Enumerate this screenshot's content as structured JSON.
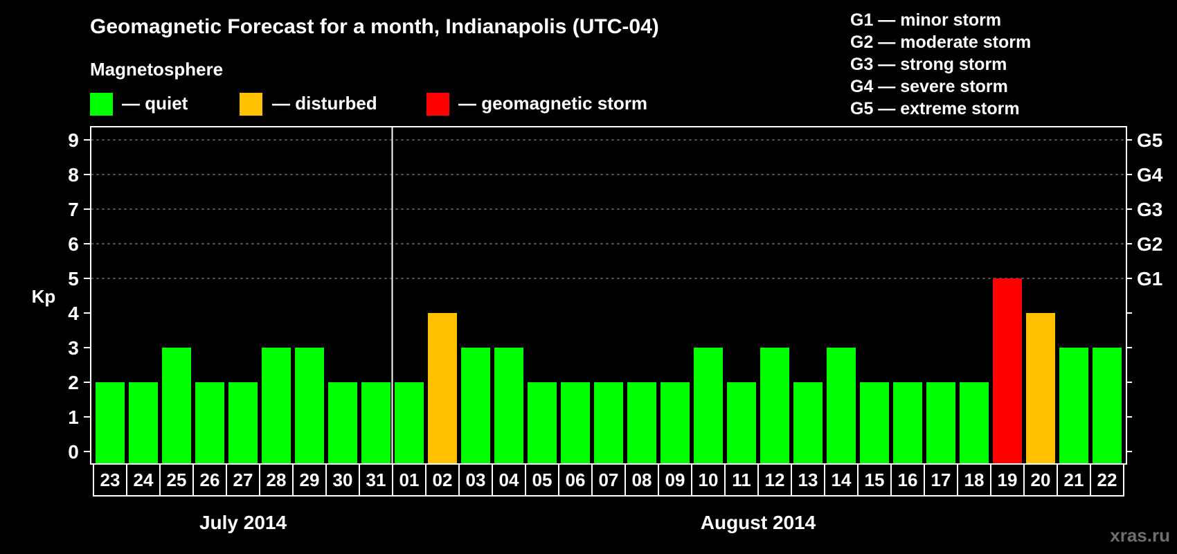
{
  "colors": {
    "background": "#000000",
    "quiet": "#00ff00",
    "disturbed": "#ffc000",
    "storm": "#ff0000",
    "grid": "#7a7a7a",
    "watermark": "#6e6e6e"
  },
  "legend": {
    "heading": "Magnetosphere",
    "items": [
      {
        "label": "— quiet",
        "color_key": "quiet"
      },
      {
        "label": "— disturbed",
        "color_key": "disturbed"
      },
      {
        "label": "— geomagnetic storm",
        "color_key": "storm"
      }
    ]
  },
  "g_scale_legend": [
    "G1 — minor storm",
    "G2 — moderate storm",
    "G3 — strong storm",
    "G4 — severe storm",
    "G5 — extreme storm"
  ],
  "watermark": "xras.ru",
  "chart_data": {
    "type": "bar",
    "title": "Geomagnetic Forecast for a month, Indianapolis (UTC-04)",
    "ylabel": "Kp",
    "xlabel": "",
    "ylim": [
      0,
      9
    ],
    "yticks": [
      0,
      1,
      2,
      3,
      4,
      5,
      6,
      7,
      8,
      9
    ],
    "right_axis_labels": [
      {
        "value": 5,
        "label": "G1"
      },
      {
        "value": 6,
        "label": "G2"
      },
      {
        "value": 7,
        "label": "G3"
      },
      {
        "value": 8,
        "label": "G4"
      },
      {
        "value": 9,
        "label": "G5"
      }
    ],
    "grid": "horizontal dashed at 5–9",
    "categories": [
      "23",
      "24",
      "25",
      "26",
      "27",
      "28",
      "29",
      "30",
      "31",
      "01",
      "02",
      "03",
      "04",
      "05",
      "06",
      "07",
      "08",
      "09",
      "10",
      "11",
      "12",
      "13",
      "14",
      "15",
      "16",
      "17",
      "18",
      "19",
      "20",
      "21",
      "22"
    ],
    "values": [
      2,
      2,
      3,
      2,
      2,
      3,
      3,
      2,
      2,
      2,
      4,
      3,
      3,
      2,
      2,
      2,
      2,
      2,
      3,
      2,
      3,
      2,
      3,
      2,
      2,
      2,
      2,
      5,
      4,
      3,
      3
    ],
    "status": [
      "quiet",
      "quiet",
      "quiet",
      "quiet",
      "quiet",
      "quiet",
      "quiet",
      "quiet",
      "quiet",
      "quiet",
      "disturbed",
      "quiet",
      "quiet",
      "quiet",
      "quiet",
      "quiet",
      "quiet",
      "quiet",
      "quiet",
      "quiet",
      "quiet",
      "quiet",
      "quiet",
      "quiet",
      "quiet",
      "quiet",
      "quiet",
      "storm",
      "disturbed",
      "quiet",
      "quiet"
    ],
    "months": [
      {
        "label": "July 2014",
        "start_index": 0,
        "end_index": 8
      },
      {
        "label": "August 2014",
        "start_index": 9,
        "end_index": 30
      }
    ]
  }
}
